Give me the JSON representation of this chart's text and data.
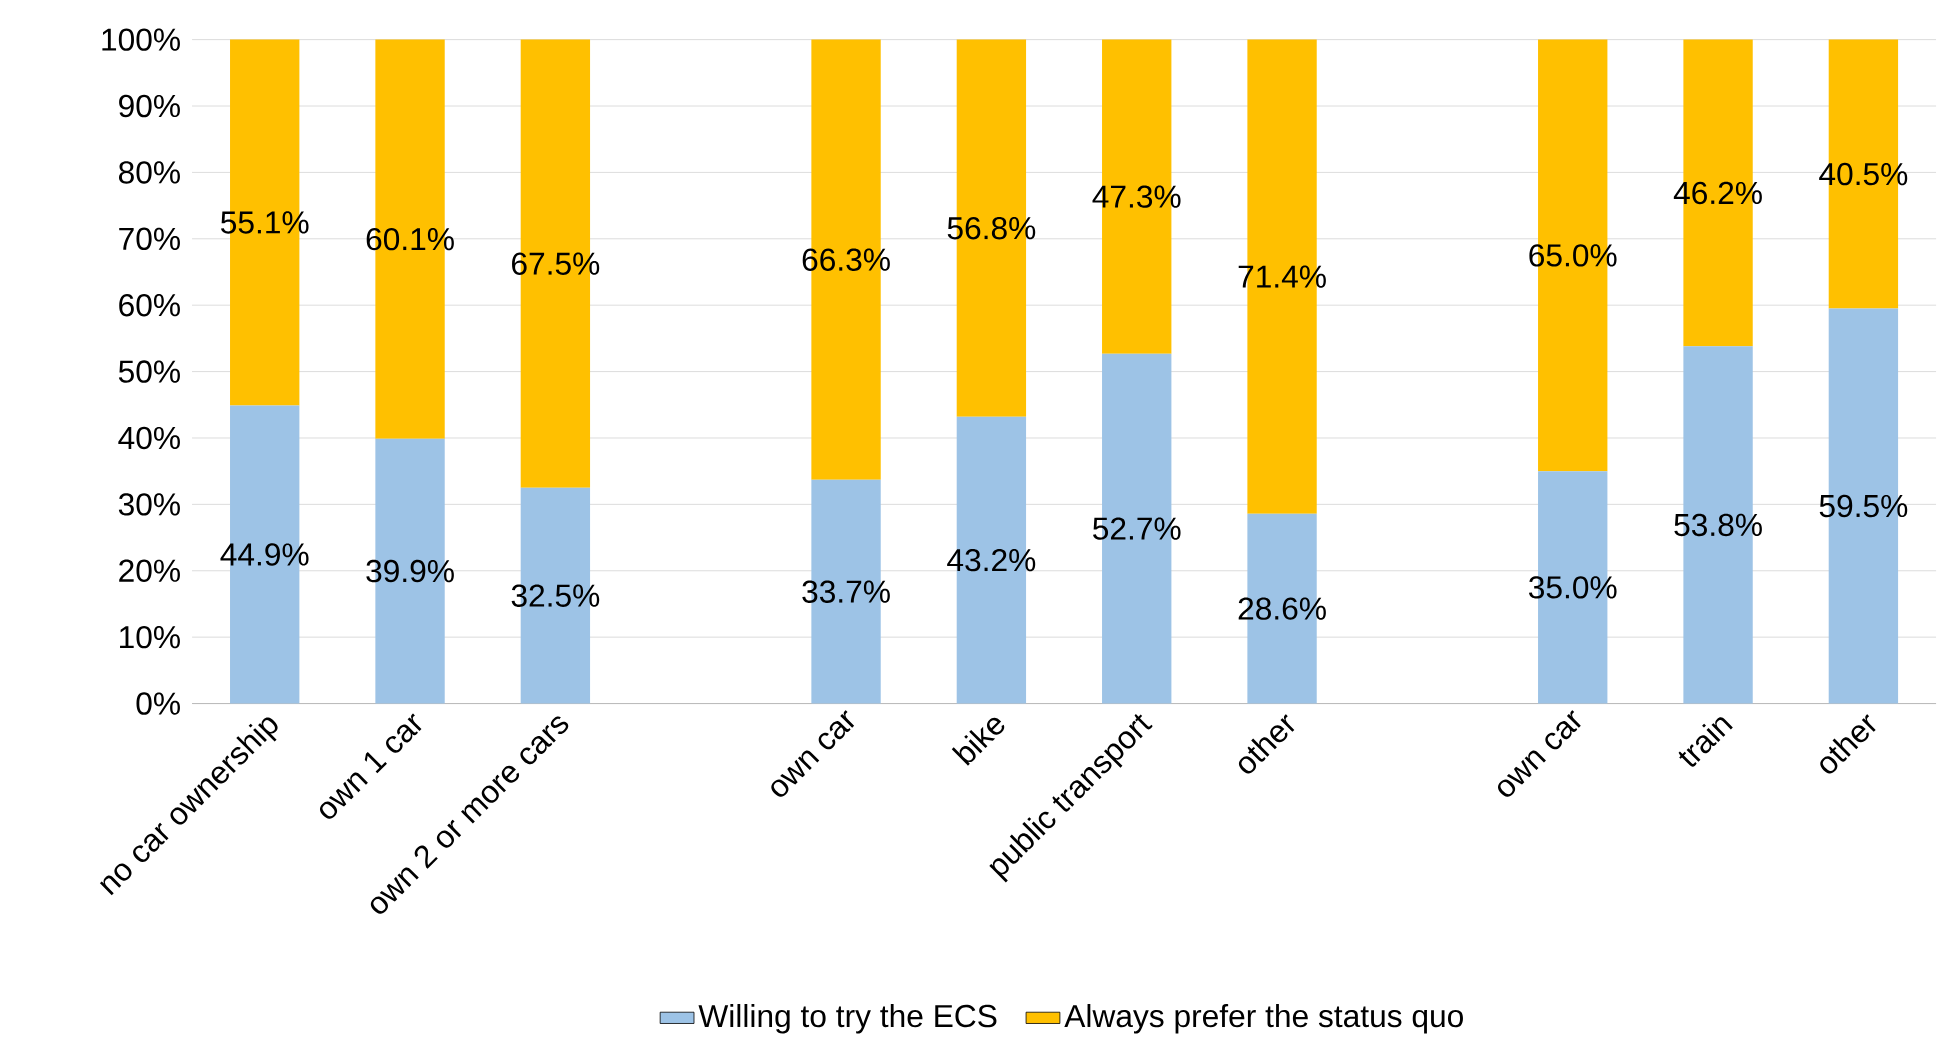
{
  "chart_data": {
    "type": "bar",
    "stacked": true,
    "categories": [
      "no car ownership",
      "own 1 car",
      "own 2 or more cars",
      null,
      "own car",
      "bike",
      "public transport",
      "other",
      null,
      "own car",
      "train",
      "other"
    ],
    "series": [
      {
        "name": "Willing to try the ECS",
        "color": "#9dc3e6",
        "values": [
          44.9,
          39.9,
          32.5,
          null,
          33.7,
          43.2,
          52.7,
          28.6,
          null,
          35.0,
          53.8,
          59.5
        ],
        "value_labels": [
          "44.9%",
          "39.9%",
          "32.5%",
          null,
          "33.7%",
          "43.2%",
          "52.7%",
          "28.6%",
          null,
          "35.0%",
          "53.8%",
          "59.5%"
        ]
      },
      {
        "name": "Always prefer the status quo",
        "color": "#ffc000",
        "values": [
          55.1,
          60.1,
          67.5,
          null,
          66.3,
          56.8,
          47.3,
          71.4,
          null,
          65.0,
          46.2,
          40.5
        ],
        "value_labels": [
          "55.1%",
          "60.1%",
          "67.5%",
          null,
          "66.3%",
          "56.8%",
          "47.3%",
          "71.4%",
          null,
          "65.0%",
          "46.2%",
          "40.5%"
        ]
      }
    ],
    "ylim": [
      0,
      100
    ],
    "yticks": [
      {
        "value": 0,
        "label": "0%"
      },
      {
        "value": 10,
        "label": "10%"
      },
      {
        "value": 20,
        "label": "20%"
      },
      {
        "value": 30,
        "label": "30%"
      },
      {
        "value": 40,
        "label": "40%"
      },
      {
        "value": 50,
        "label": "50%"
      },
      {
        "value": 60,
        "label": "60%"
      },
      {
        "value": 70,
        "label": "70%"
      },
      {
        "value": 80,
        "label": "80%"
      },
      {
        "value": 90,
        "label": "90%"
      },
      {
        "value": 100,
        "label": "100%"
      }
    ],
    "grid": "y",
    "legend": "bottom"
  }
}
